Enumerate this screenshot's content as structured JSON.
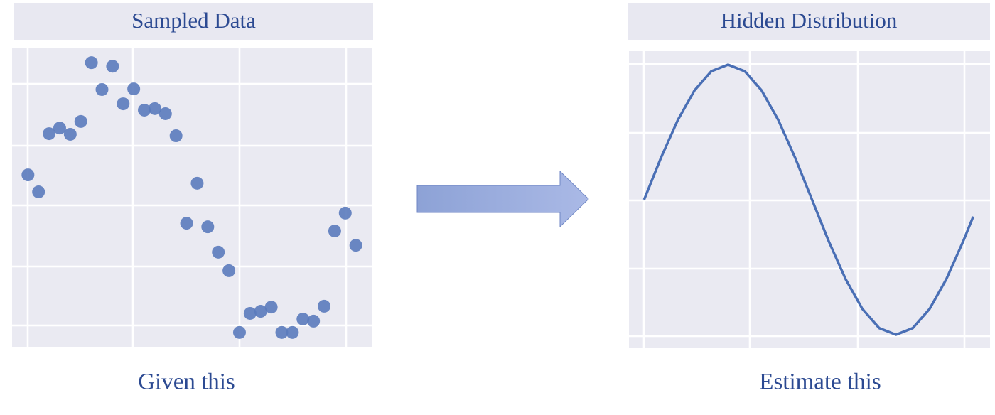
{
  "chart_data": [
    {
      "type": "scatter",
      "title": "Sampled Data",
      "caption": "Given this",
      "color": "#5b7bbd",
      "grid": true,
      "xlim": [
        -1.5,
        32.5
      ],
      "ylim": [
        0,
        10
      ],
      "x": [
        0,
        1,
        2,
        3,
        4,
        5,
        6,
        7,
        8,
        9,
        10,
        11,
        12,
        13,
        14,
        15,
        16,
        17,
        18,
        19,
        20,
        21,
        22,
        23,
        24,
        25,
        26,
        27,
        28,
        29,
        30,
        31
      ],
      "values": [
        5.76,
        5.19,
        7.14,
        7.33,
        7.12,
        7.55,
        9.52,
        8.62,
        9.4,
        8.14,
        8.64,
        7.93,
        7.98,
        7.81,
        7.07,
        4.14,
        5.48,
        4.02,
        3.17,
        2.55,
        0.48,
        1.12,
        1.19,
        1.33,
        0.48,
        0.48,
        0.93,
        0.86,
        1.36,
        3.88,
        4.48,
        3.4
      ]
    },
    {
      "type": "line",
      "title": "Hidden Distribution",
      "caption": "Estimate this",
      "color": "#4a6fb5",
      "grid": true,
      "xlim": [
        -0.045,
        1.03
      ],
      "ylim": [
        -1.1,
        1.1
      ],
      "x": [
        0,
        0.05,
        0.1,
        0.15,
        0.2,
        0.25,
        0.3,
        0.35,
        0.4,
        0.45,
        0.5,
        0.55,
        0.6,
        0.65,
        0.7,
        0.75,
        0.8,
        0.85,
        0.9,
        0.95,
        0.98
      ],
      "values": [
        0,
        0.309,
        0.588,
        0.809,
        0.951,
        1,
        0.951,
        0.809,
        0.588,
        0.309,
        0,
        -0.309,
        -0.588,
        -0.809,
        -0.951,
        -1,
        -0.951,
        -0.809,
        -0.588,
        -0.309,
        -0.125
      ]
    }
  ]
}
